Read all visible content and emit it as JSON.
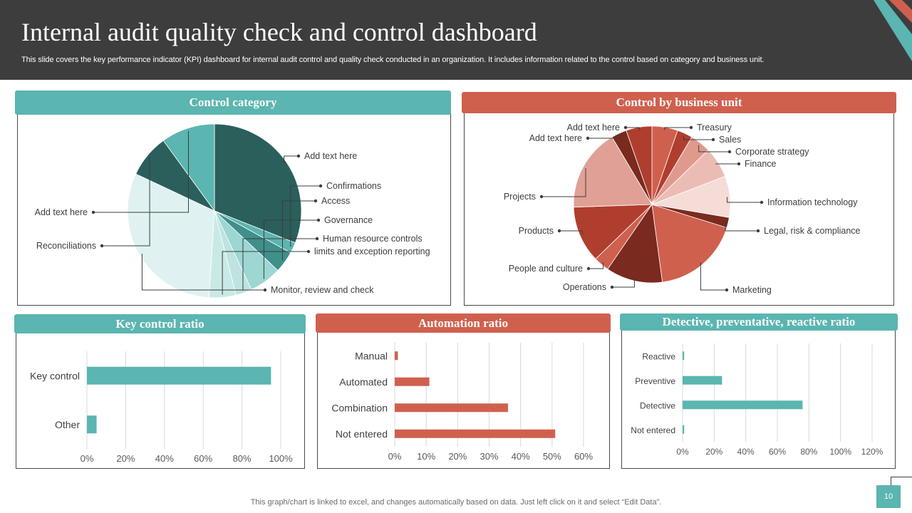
{
  "header": {
    "title": "Internal audit quality check and control dashboard",
    "subtitle": "This slide covers the key performance indicator (KPI) dashboard for internal audit control and quality check conducted in an organization. It includes information related to the control based on category and business unit."
  },
  "colors": {
    "teal": "#5bb5b0",
    "coral": "#d0604e",
    "dark": "#3d3d3d"
  },
  "panels": {
    "control_category": "Control category",
    "business_unit": "Control by business unit",
    "key_control": "Key control ratio",
    "automation": "Automation ratio",
    "detective": "Detective, preventative, reactive ratio"
  },
  "chart_data": [
    {
      "type": "pie",
      "title": "Control category",
      "labels": [
        "Add text here",
        "Confirmations",
        "Access",
        "Governance",
        "Human resource controls",
        "limits and exception reporting",
        "Monitor, review and check",
        "Reconciliations",
        "Add text here"
      ],
      "values": [
        31,
        2,
        4,
        6,
        3,
        5,
        31,
        8,
        10
      ],
      "colors": [
        "#2a5f5c",
        "#5bb5b0",
        "#3f8f8a",
        "#9dd6d2",
        "#bde4e1",
        "#c9e9e7",
        "#dff2f1",
        "#2a5f5c",
        "#5bb5b0"
      ]
    },
    {
      "type": "pie",
      "title": "Control by business unit",
      "labels": [
        "Treasury",
        "Sales",
        "Corporate  strategy",
        "Finance",
        "Information  technology",
        "Legal, risk & compliance",
        "Marketing",
        "Operations",
        "People and culture",
        "Products",
        "Projects",
        "Add text here",
        "Add text here"
      ],
      "values": [
        5,
        3,
        4,
        6,
        8,
        2,
        17,
        11,
        3,
        11,
        16,
        3,
        5
      ],
      "colors": [
        "#d0604e",
        "#b03e2e",
        "#e0998d",
        "#ebbcb4",
        "#f5dcd7",
        "#7a2a1f",
        "#d0604e",
        "#7a2a1f",
        "#d0604e",
        "#b03e2e",
        "#e0a095",
        "#7a2a1f",
        "#b03e2e"
      ]
    },
    {
      "type": "bar",
      "orientation": "horizontal",
      "title": "Key control ratio",
      "categories": [
        "Key control",
        "Other"
      ],
      "values": [
        95,
        5
      ],
      "xlim": [
        0,
        100
      ],
      "xticks": [
        "0%",
        "20%",
        "40%",
        "60%",
        "80%",
        "100%"
      ],
      "color": "#5bb5b0"
    },
    {
      "type": "bar",
      "orientation": "horizontal",
      "title": "Automation ratio",
      "categories": [
        "Manual",
        "Automated",
        "Combination",
        "Not entered"
      ],
      "values": [
        1,
        11,
        36,
        51
      ],
      "xlim": [
        0,
        60
      ],
      "xticks": [
        "0%",
        "10%",
        "20%",
        "30%",
        "40%",
        "50%",
        "60%"
      ],
      "color": "#d0604e"
    },
    {
      "type": "bar",
      "orientation": "horizontal",
      "title": "Detective, preventative, reactive ratio",
      "categories": [
        "Reactive",
        "Preventive",
        "Detective",
        "Not entered"
      ],
      "values": [
        1,
        25,
        76,
        1
      ],
      "xlim": [
        0,
        120
      ],
      "xticks": [
        "0%",
        "20%",
        "40%",
        "60%",
        "80%",
        "100%",
        "120%"
      ],
      "color": "#5bb5b0"
    }
  ],
  "footer": {
    "note": "This graph/chart is linked to excel, and changes automatically based on data. Just left click on it and select “Edit Data”.",
    "page": "10"
  }
}
